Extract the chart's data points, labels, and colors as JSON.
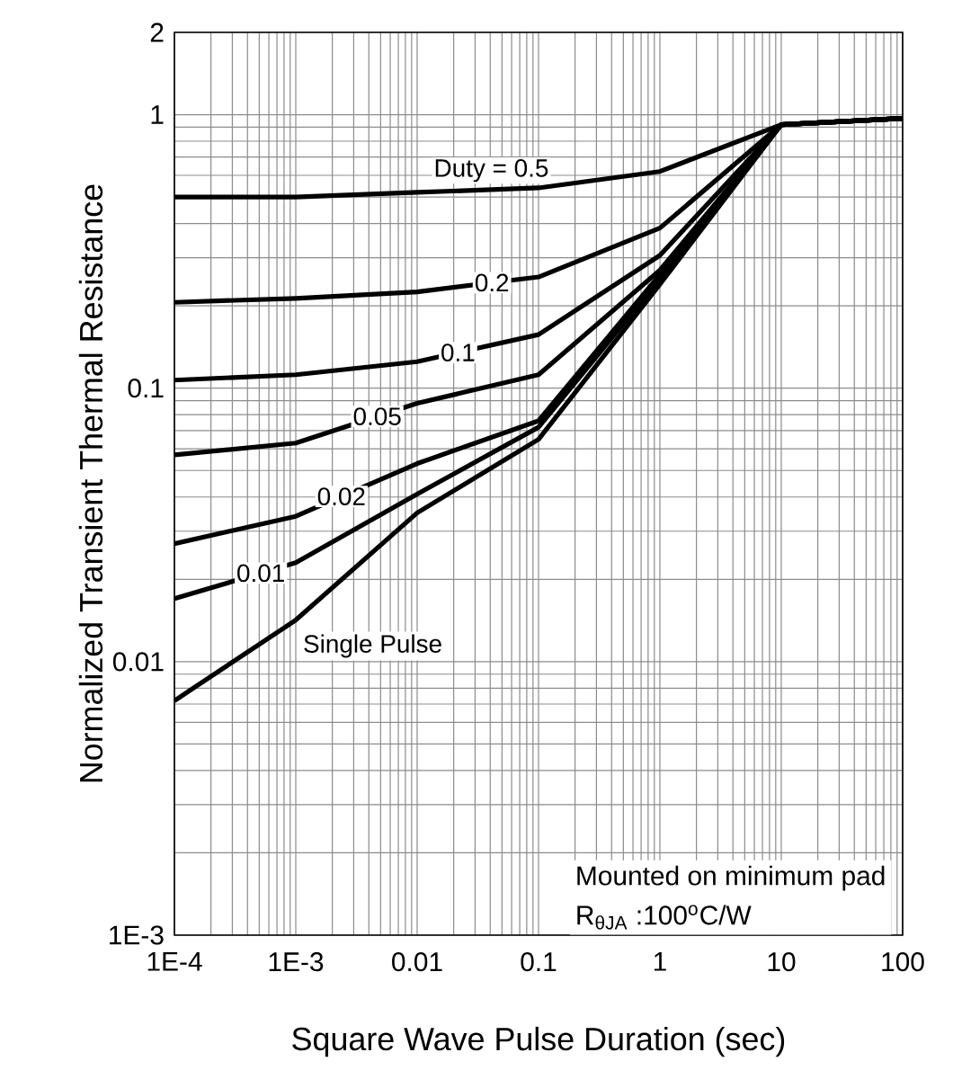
{
  "chart_data": {
    "type": "line",
    "xlabel": "Square Wave Pulse Duration (sec)",
    "ylabel": "Normalized Transient Thermal Resistance",
    "x": [
      0.0001,
      0.001,
      0.01,
      0.1,
      1,
      10,
      100
    ],
    "series": [
      {
        "name": "Duty = 0.5",
        "color": "#000000",
        "values": [
          0.5,
          0.5,
          0.52,
          0.54,
          0.62,
          0.92,
          0.97
        ]
      },
      {
        "name": "0.2",
        "color": "#000000",
        "values": [
          0.206,
          0.213,
          0.225,
          0.255,
          0.385,
          0.92,
          0.97
        ]
      },
      {
        "name": "0.1",
        "color": "#000000",
        "values": [
          0.107,
          0.112,
          0.125,
          0.157,
          0.306,
          0.92,
          0.97
        ]
      },
      {
        "name": "0.05",
        "color": "#000000",
        "values": [
          0.057,
          0.063,
          0.088,
          0.112,
          0.27,
          0.92,
          0.97
        ]
      },
      {
        "name": "0.02",
        "color": "#000000",
        "values": [
          0.027,
          0.034,
          0.053,
          0.076,
          0.26,
          0.92,
          0.97
        ]
      },
      {
        "name": "0.01",
        "color": "#000000",
        "values": [
          0.017,
          0.023,
          0.041,
          0.072,
          0.25,
          0.92,
          0.97
        ]
      },
      {
        "name": "Single Pulse",
        "color": "#000000",
        "values": [
          0.0072,
          0.0142,
          0.035,
          0.065,
          0.24,
          0.92,
          0.97
        ]
      }
    ],
    "log": "xy",
    "xlim": [
      0.0001,
      100
    ],
    "ylim": [
      0.001,
      2
    ],
    "xticks": [
      {
        "value": 0.0001,
        "label": "1E-4"
      },
      {
        "value": 0.001,
        "label": "1E-3"
      },
      0.01,
      0.1,
      1,
      10,
      100
    ],
    "yticks": [
      {
        "value": 0.001,
        "label": "1E-3"
      },
      0.01,
      0.1,
      1,
      2
    ],
    "grid": true,
    "marker": "none",
    "line_style": "solid",
    "annotations": [
      "Mounted on minimum pad",
      "R$_{θJA}$ :100$^{o}$C/W"
    ]
  }
}
